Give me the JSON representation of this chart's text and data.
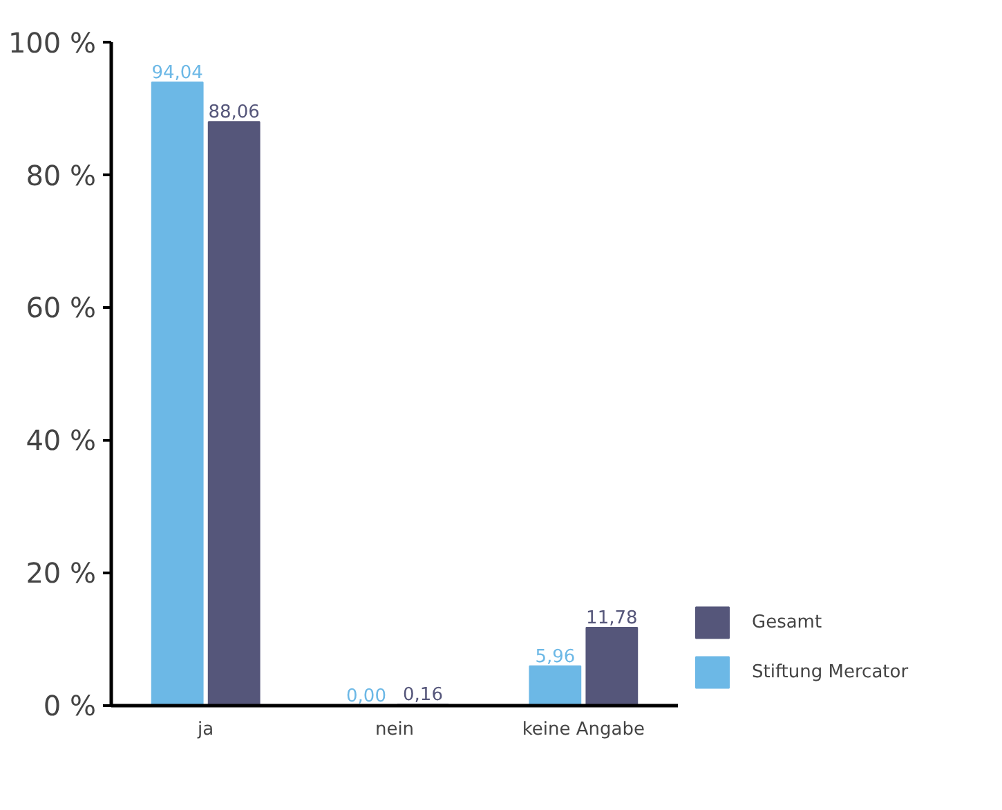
{
  "chart_data": {
    "type": "bar",
    "categories": [
      "ja",
      "nein",
      "keine Angabe"
    ],
    "series": [
      {
        "name": "Stiftung Mercator",
        "color": "#6cb8e6",
        "values": [
          94.04,
          0.0,
          5.96
        ],
        "value_labels": [
          "94,04",
          "0,00",
          "5,96"
        ]
      },
      {
        "name": "Gesamt",
        "color": "#55567a",
        "values": [
          88.06,
          0.16,
          11.78
        ],
        "value_labels": [
          "88,06",
          "0,16",
          "11,78"
        ]
      }
    ],
    "ylim": [
      0,
      100
    ],
    "yticks": [
      {
        "value": 0,
        "label": "0 %"
      },
      {
        "value": 20,
        "label": "20 %"
      },
      {
        "value": 40,
        "label": "40 %"
      },
      {
        "value": 60,
        "label": "60 %"
      },
      {
        "value": 80,
        "label": "80 %"
      },
      {
        "value": 100,
        "label": "100 %"
      }
    ],
    "grid": false,
    "legend": "bottom right"
  }
}
